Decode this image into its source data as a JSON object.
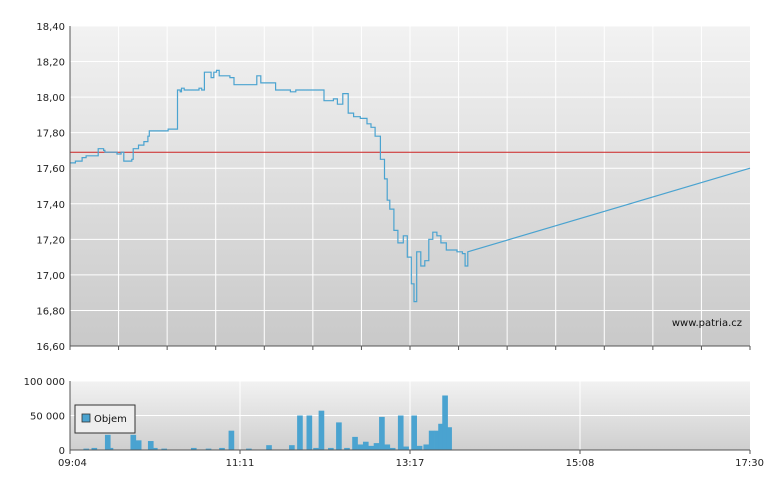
{
  "chart_data": [
    {
      "type": "line",
      "title": "",
      "xlabel": "",
      "ylabel": "",
      "x_ticks": [
        "09:04",
        "11:11",
        "13:17",
        "15:08",
        "17:30"
      ],
      "ylim": [
        16.6,
        18.4
      ],
      "y_ticks": [
        "16,60",
        "16,80",
        "17,00",
        "17,20",
        "17,40",
        "17,60",
        "17,80",
        "18,00",
        "18,20",
        "18,40"
      ],
      "reference_line": {
        "value": 17.69,
        "color": "#cc2222"
      },
      "grid": true,
      "credit": "www.patria.cz",
      "series": [
        {
          "color": "#4aa3d0",
          "points": [
            [
              "09:04",
              17.63
            ],
            [
              "09:08",
              17.64
            ],
            [
              "09:13",
              17.66
            ],
            [
              "09:16",
              17.67
            ],
            [
              "09:25",
              17.71
            ],
            [
              "09:29",
              17.7
            ],
            [
              "09:30",
              17.69
            ],
            [
              "09:39",
              17.68
            ],
            [
              "09:42",
              17.69
            ],
            [
              "09:44",
              17.64
            ],
            [
              "09:50",
              17.65
            ],
            [
              "09:51",
              17.71
            ],
            [
              "09:55",
              17.73
            ],
            [
              "09:59",
              17.75
            ],
            [
              "10:02",
              17.78
            ],
            [
              "10:03",
              17.81
            ],
            [
              "10:17",
              17.82
            ],
            [
              "10:24",
              18.04
            ],
            [
              "10:26",
              18.03
            ],
            [
              "10:27",
              18.05
            ],
            [
              "10:29",
              18.04
            ],
            [
              "10:40",
              18.05
            ],
            [
              "10:42",
              18.04
            ],
            [
              "10:44",
              18.14
            ],
            [
              "10:49",
              18.11
            ],
            [
              "10:51",
              18.14
            ],
            [
              "10:53",
              18.15
            ],
            [
              "10:55",
              18.12
            ],
            [
              "11:03",
              18.11
            ],
            [
              "11:06",
              18.07
            ],
            [
              "11:23",
              18.12
            ],
            [
              "11:26",
              18.08
            ],
            [
              "11:37",
              18.04
            ],
            [
              "11:48",
              18.03
            ],
            [
              "11:52",
              18.04
            ],
            [
              "12:13",
              17.98
            ],
            [
              "12:20",
              17.99
            ],
            [
              "12:23",
              17.96
            ],
            [
              "12:27",
              18.02
            ],
            [
              "12:31",
              17.91
            ],
            [
              "12:35",
              17.89
            ],
            [
              "12:40",
              17.88
            ],
            [
              "12:45",
              17.85
            ],
            [
              "12:48",
              17.83
            ],
            [
              "12:51",
              17.78
            ],
            [
              "12:55",
              17.65
            ],
            [
              "12:58",
              17.54
            ],
            [
              "13:00",
              17.42
            ],
            [
              "13:02",
              17.37
            ],
            [
              "13:05",
              17.25
            ],
            [
              "13:08",
              17.18
            ],
            [
              "13:12",
              17.22
            ],
            [
              "13:15",
              17.1
            ],
            [
              "13:18",
              16.95
            ],
            [
              "13:20",
              16.85
            ],
            [
              "13:22",
              17.13
            ],
            [
              "13:25",
              17.05
            ],
            [
              "13:28",
              17.08
            ],
            [
              "13:31",
              17.2
            ],
            [
              "13:34",
              17.24
            ],
            [
              "13:37",
              17.22
            ],
            [
              "13:40",
              17.18
            ],
            [
              "13:44",
              17.14
            ],
            [
              "13:52",
              17.13
            ],
            [
              "13:56",
              17.12
            ],
            [
              "13:58",
              17.05
            ],
            [
              "14:00",
              17.13
            ],
            [
              "17:30",
              17.6
            ]
          ]
        }
      ]
    },
    {
      "type": "bar",
      "title": "",
      "xlabel": "",
      "ylabel": "",
      "ylim": [
        0,
        100000
      ],
      "y_ticks": [
        "0",
        "50 000",
        "100 000"
      ],
      "x_ticks": [
        "09:04",
        "11:11",
        "13:17",
        "15:08",
        "17:30"
      ],
      "grid": true,
      "legend": {
        "position": "bottom-left",
        "entries": [
          "Objem"
        ]
      },
      "series": [
        {
          "name": "Objem",
          "color": "#4aa3d0",
          "bars": [
            [
              "09:14",
              2000
            ],
            [
              "09:20",
              3000
            ],
            [
              "09:30",
              22000
            ],
            [
              "09:32",
              3000
            ],
            [
              "09:49",
              22000
            ],
            [
              "09:53",
              14000
            ],
            [
              "10:02",
              13000
            ],
            [
              "10:05",
              3000
            ],
            [
              "10:12",
              2000
            ],
            [
              "10:34",
              3000
            ],
            [
              "10:45",
              2000
            ],
            [
              "10:55",
              3000
            ],
            [
              "11:02",
              28000
            ],
            [
              "11:15",
              2000
            ],
            [
              "11:30",
              7000
            ],
            [
              "11:47",
              7000
            ],
            [
              "11:53",
              50000
            ],
            [
              "12:00",
              50000
            ],
            [
              "12:05",
              3000
            ],
            [
              "12:09",
              57000
            ],
            [
              "12:16",
              3000
            ],
            [
              "12:22",
              40000
            ],
            [
              "12:28",
              3000
            ],
            [
              "12:34",
              19000
            ],
            [
              "12:38",
              8000
            ],
            [
              "12:42",
              12000
            ],
            [
              "12:46",
              6000
            ],
            [
              "12:50",
              10000
            ],
            [
              "12:54",
              48000
            ],
            [
              "12:58",
              8000
            ],
            [
              "13:02",
              3000
            ],
            [
              "13:08",
              50000
            ],
            [
              "13:12",
              5000
            ],
            [
              "13:18",
              50000
            ],
            [
              "13:22",
              6000
            ],
            [
              "13:27",
              8000
            ],
            [
              "13:31",
              28000
            ],
            [
              "13:35",
              28000
            ],
            [
              "13:38",
              38000
            ],
            [
              "13:41",
              79000
            ],
            [
              "13:44",
              33000
            ]
          ]
        }
      ]
    }
  ]
}
